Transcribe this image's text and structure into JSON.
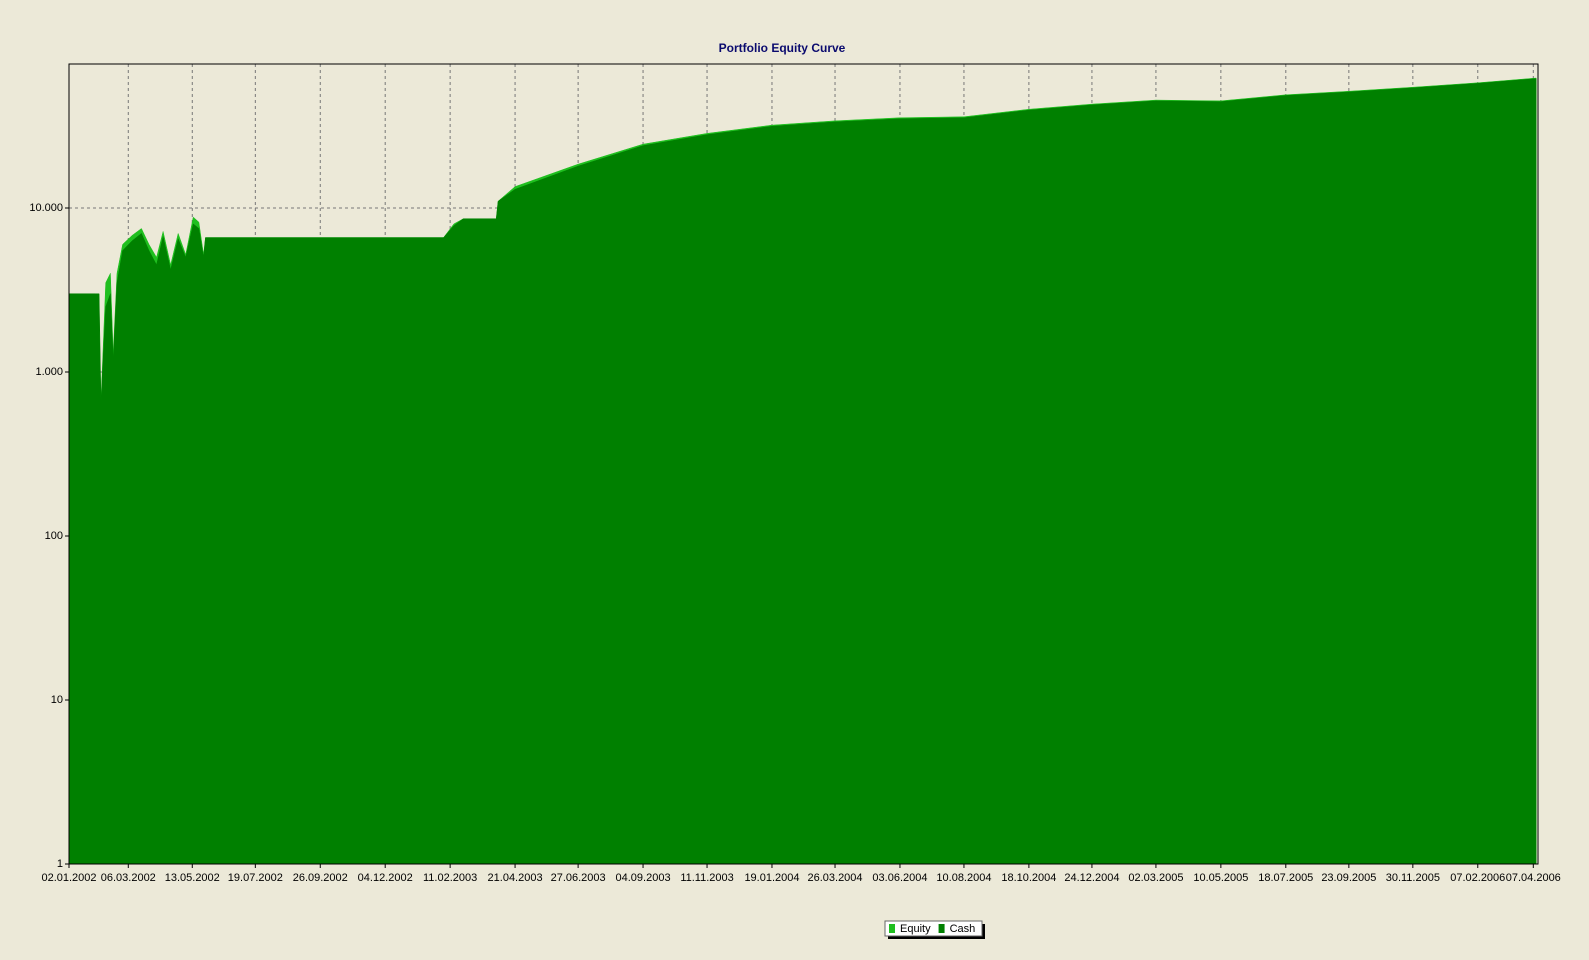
{
  "chart_data": {
    "type": "area",
    "title": "Portfolio Equity Curve",
    "log_scale": true,
    "grid": true,
    "legend": "bottom",
    "x": [
      "02.01.2002",
      "30.01.2002",
      "03.02.2002",
      "05.02.2002",
      "10.02.2002",
      "15.02.2002",
      "18.02.2002",
      "22.02.2002",
      "28.02.2002",
      "10.03.2002",
      "20.03.2002",
      "28.03.2002",
      "05.04.2002",
      "12.04.2002",
      "20.04.2002",
      "28.04.2002",
      "06.05.2002",
      "14.05.2002",
      "20.05.2002",
      "25.05.2002",
      "27.05.2002",
      "04.02.2003",
      "15.02.2003",
      "25.02.2003",
      "01.04.2003",
      "03.04.2003",
      "21.04.2003",
      "27.06.2003",
      "04.09.2003",
      "11.11.2003",
      "19.01.2004",
      "26.03.2004",
      "03.06.2004",
      "10.08.2004",
      "18.10.2004",
      "24.12.2004",
      "02.03.2005",
      "10.05.2005",
      "18.07.2005",
      "23.09.2005",
      "30.11.2005",
      "07.02.2006",
      "10.04.2006"
    ],
    "series": [
      {
        "name": "Equity",
        "color": "#1fbf1f",
        "values": [
          3000,
          3000,
          1800,
          660,
          3500,
          4000,
          1300,
          4000,
          6000,
          6800,
          7500,
          6000,
          5000,
          7200,
          4500,
          7000,
          5200,
          8800,
          8200,
          5200,
          6600,
          6600,
          8000,
          8600,
          8600,
          11000,
          13500,
          18500,
          24500,
          28500,
          32000,
          34000,
          35500,
          36000,
          40000,
          43000,
          45500,
          45000,
          49000,
          51500,
          54500,
          58000,
          62000
        ]
      },
      {
        "name": "Cash",
        "color": "#008000",
        "values": [
          3000,
          3000,
          3000,
          660,
          2500,
          3000,
          1200,
          3500,
          5500,
          6300,
          7000,
          5500,
          4500,
          6700,
          4200,
          6500,
          5000,
          8000,
          7500,
          5000,
          6600,
          6600,
          7800,
          8600,
          8600,
          11000,
          13000,
          18000,
          24000,
          28000,
          31500,
          33500,
          35000,
          35500,
          39500,
          42500,
          45000,
          44500,
          48500,
          51000,
          54000,
          57500,
          61500
        ]
      }
    ],
    "xlim": [
      "02.01.2002",
      "12.04.2006"
    ],
    "xticks": [
      "02.01.2002",
      "06.03.2002",
      "13.05.2002",
      "19.07.2002",
      "26.09.2002",
      "04.12.2002",
      "11.02.2003",
      "21.04.2003",
      "27.06.2003",
      "04.09.2003",
      "11.11.2003",
      "19.01.2004",
      "26.03.2004",
      "03.06.2004",
      "10.08.2004",
      "18.10.2004",
      "24.12.2004",
      "02.03.2005",
      "10.05.2005",
      "18.07.2005",
      "23.09.2005",
      "30.11.2005",
      "07.02.2006",
      "07.04.2006"
    ],
    "ylim": [
      1,
      75500
    ],
    "yticks": [
      1,
      10,
      100,
      {
        "value": 1000,
        "label": "1.000"
      },
      {
        "value": 10000,
        "label": "10.000"
      }
    ]
  }
}
